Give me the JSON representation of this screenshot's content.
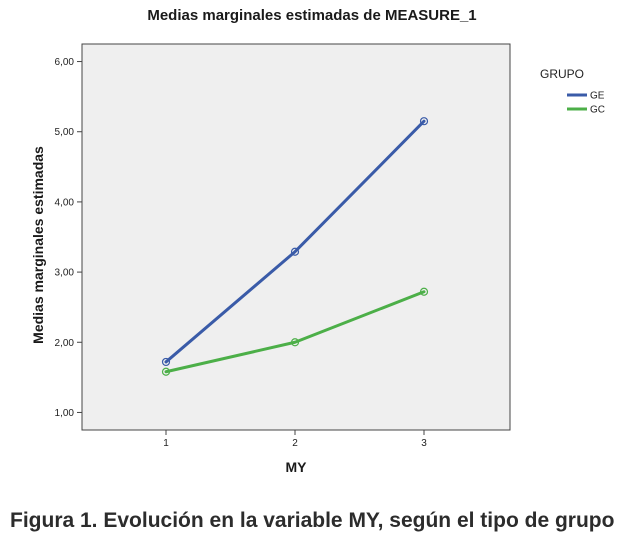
{
  "caption": "Figura 1. Evolución en la variable MY, según el tipo de grupo",
  "chart_data": {
    "type": "line",
    "title": "Medias marginales estimadas de MEASURE_1",
    "xlabel": "MY",
    "ylabel": "Medias marginales estimadas",
    "categories": [
      "1",
      "2",
      "3"
    ],
    "ylim": [
      0.75,
      6.25
    ],
    "yticks": [
      "1,00",
      "2,00",
      "3,00",
      "4,00",
      "5,00",
      "6,00"
    ],
    "ytick_values": [
      1,
      2,
      3,
      4,
      5,
      6
    ],
    "grid": false,
    "legend_title": "GRUPO",
    "legend_position": "top-right outside",
    "plot_background": "#efefef",
    "series": [
      {
        "name": "GE",
        "color": "#3a5ba8",
        "values": [
          1.72,
          3.29,
          5.15
        ]
      },
      {
        "name": "GC",
        "color": "#4caf48",
        "values": [
          1.58,
          2.0,
          2.72
        ]
      }
    ]
  }
}
